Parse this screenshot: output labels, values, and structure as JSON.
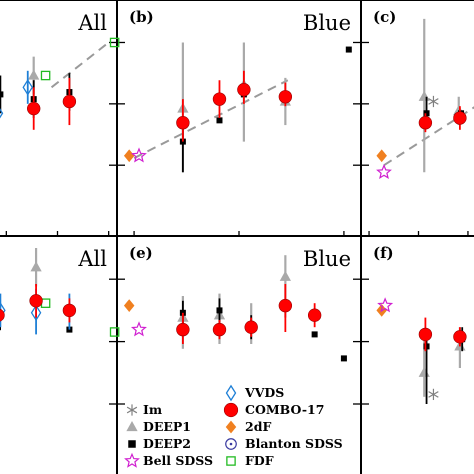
{
  "figure": {
    "colors": {
      "im": "#808080",
      "deep1": "#a9a9a9",
      "deep2": "#000000",
      "combo17": "#ff0000",
      "twodf": "#f08020",
      "vvds": "#1e7fd6",
      "blanton": "#3a3aa0",
      "bell": "#d020d0",
      "fdf": "#22bb22",
      "trend": "#9a9a9a"
    },
    "legend": [
      {
        "label": "Im",
        "marker": "asterisk"
      },
      {
        "label": "DEEP1",
        "marker": "triangle"
      },
      {
        "label": "DEEP2",
        "marker": "square-filled"
      },
      {
        "label": "Bell SDSS",
        "marker": "star"
      },
      {
        "label": "VVDS",
        "marker": "diamond-open"
      },
      {
        "label": "COMBO-17",
        "marker": "circle-filled"
      },
      {
        "label": "2dF",
        "marker": "diamond-filled"
      },
      {
        "label": "Blanton SDSS",
        "marker": "circle-dot"
      },
      {
        "label": "FDF",
        "marker": "square-open"
      }
    ]
  },
  "chart_data": [
    {
      "panel": "a",
      "type": "scatter",
      "title": "All",
      "letter": "",
      "xlim": [
        0,
        1
      ],
      "ylim": [
        0,
        1
      ],
      "trend": [
        [
          0.45,
          0.63
        ],
        [
          0.93,
          0.82
        ]
      ],
      "series": [
        {
          "name": "VVDS",
          "points": [
            {
              "x": 0.0,
              "y": 0.52,
              "lo": 0.44,
              "hi": 0.6
            },
            {
              "x": 0.25,
              "y": 0.63,
              "lo": 0.56,
              "hi": 0.7
            }
          ]
        },
        {
          "name": "DEEP2",
          "points": [
            {
              "x": 0.02,
              "y": 0.6,
              "lo": 0.52,
              "hi": 0.68
            },
            {
              "x": 0.3,
              "y": 0.58,
              "lo": 0.5,
              "hi": 0.66
            },
            {
              "x": 0.6,
              "y": 0.61,
              "lo": 0.53,
              "hi": 0.69
            }
          ]
        },
        {
          "name": "COMBO-17",
          "points": [
            {
              "x": 0.3,
              "y": 0.54,
              "lo": 0.45,
              "hi": 0.63
            },
            {
              "x": 0.6,
              "y": 0.57,
              "lo": 0.47,
              "hi": 0.67
            }
          ]
        },
        {
          "name": "DEEP1",
          "points": [
            {
              "x": 0.3,
              "y": 0.68,
              "lo": 0.6,
              "hi": 0.76
            }
          ]
        },
        {
          "name": "FDF",
          "points": [
            {
              "x": 0.4,
              "y": 0.68
            },
            {
              "x": 0.98,
              "y": 0.82
            }
          ]
        }
      ]
    },
    {
      "panel": "b",
      "type": "scatter",
      "title": "Blue",
      "letter": "(b)",
      "xlim": [
        0,
        1
      ],
      "ylim": [
        0,
        1
      ],
      "trend": [
        [
          0.07,
          0.33
        ],
        [
          0.7,
          0.66
        ]
      ],
      "series": [
        {
          "name": "DEEP1",
          "points": [
            {
              "x": 0.27,
              "y": 0.54,
              "lo": 0.27,
              "hi": 0.82
            },
            {
              "x": 0.52,
              "y": 0.64,
              "lo": 0.4,
              "hi": 0.82
            },
            {
              "x": 0.69,
              "y": 0.57,
              "lo": 0.47,
              "hi": 0.67
            }
          ]
        },
        {
          "name": "DEEP2",
          "points": [
            {
              "x": 0.27,
              "y": 0.4,
              "lo": 0.27,
              "hi": 0.5
            },
            {
              "x": 0.42,
              "y": 0.49
            },
            {
              "x": 0.52,
              "y": 0.6
            },
            {
              "x": 0.95,
              "y": 0.79
            }
          ]
        },
        {
          "name": "COMBO-17",
          "points": [
            {
              "x": 0.27,
              "y": 0.48,
              "lo": 0.4,
              "hi": 0.58
            },
            {
              "x": 0.42,
              "y": 0.58,
              "lo": 0.5,
              "hi": 0.66
            },
            {
              "x": 0.52,
              "y": 0.62,
              "lo": 0.56,
              "hi": 0.7
            },
            {
              "x": 0.69,
              "y": 0.59,
              "lo": 0.55,
              "hi": 0.65
            }
          ]
        },
        {
          "name": "2dF",
          "points": [
            {
              "x": 0.05,
              "y": 0.34
            }
          ]
        },
        {
          "name": "Bell SDSS",
          "points": [
            {
              "x": 0.09,
              "y": 0.34
            }
          ]
        }
      ]
    },
    {
      "panel": "c",
      "type": "scatter",
      "title": "",
      "letter": "(c)",
      "xlim": [
        0,
        1
      ],
      "ylim": [
        0,
        1
      ],
      "trend": [
        [
          0.2,
          0.3
        ],
        [
          1.0,
          0.55
        ]
      ],
      "series": [
        {
          "name": "DEEP1",
          "points": [
            {
              "x": 0.55,
              "y": 0.59,
              "lo": 0.27,
              "hi": 0.92
            },
            {
              "x": 0.85,
              "y": 0.53,
              "lo": 0.47,
              "hi": 0.59
            }
          ]
        },
        {
          "name": "Im",
          "points": [
            {
              "x": 0.63,
              "y": 0.57
            }
          ]
        },
        {
          "name": "DEEP2",
          "points": [
            {
              "x": 0.57,
              "y": 0.52,
              "lo": 0.47,
              "hi": 0.59
            },
            {
              "x": 0.87,
              "y": 0.52
            }
          ]
        },
        {
          "name": "COMBO-17",
          "points": [
            {
              "x": 0.56,
              "y": 0.48,
              "lo": 0.44,
              "hi": 0.52
            },
            {
              "x": 0.86,
              "y": 0.5,
              "lo": 0.45,
              "hi": 0.55
            }
          ]
        },
        {
          "name": "2dF",
          "points": [
            {
              "x": 0.18,
              "y": 0.34
            }
          ]
        },
        {
          "name": "Bell SDSS",
          "points": [
            {
              "x": 0.2,
              "y": 0.27
            }
          ]
        }
      ]
    },
    {
      "panel": "d",
      "type": "scatter",
      "title": "All",
      "letter": "",
      "xlim": [
        0,
        1
      ],
      "ylim": [
        0,
        1
      ],
      "series": [
        {
          "name": "VVDS",
          "points": [
            {
              "x": 0.02,
              "y": 0.69,
              "lo": 0.62,
              "hi": 0.76
            },
            {
              "x": 0.32,
              "y": 0.68,
              "lo": 0.59,
              "hi": 0.78
            },
            {
              "x": 0.6,
              "y": 0.69,
              "lo": 0.61,
              "hi": 0.76
            }
          ]
        },
        {
          "name": "DEEP2",
          "points": [
            {
              "x": 0.0,
              "y": 0.62
            },
            {
              "x": 0.6,
              "y": 0.61
            }
          ]
        },
        {
          "name": "COMBO-17",
          "points": [
            {
              "x": 0.0,
              "y": 0.67,
              "lo": 0.6,
              "hi": 0.74
            },
            {
              "x": 0.32,
              "y": 0.73,
              "lo": 0.66,
              "hi": 0.8
            },
            {
              "x": 0.6,
              "y": 0.69,
              "lo": 0.64,
              "hi": 0.74
            }
          ]
        },
        {
          "name": "DEEP1",
          "points": [
            {
              "x": 0.32,
              "y": 0.87,
              "lo": 0.79,
              "hi": 0.95
            },
            {
              "x": 0.6,
              "y": 0.7
            }
          ]
        },
        {
          "name": "FDF",
          "points": [
            {
              "x": 0.4,
              "y": 0.72
            },
            {
              "x": 0.98,
              "y": 0.6
            }
          ]
        }
      ]
    },
    {
      "panel": "e",
      "type": "scatter",
      "title": "Blue",
      "letter": "(e)",
      "xlim": [
        0,
        1
      ],
      "ylim": [
        0,
        1
      ],
      "series": [
        {
          "name": "DEEP1",
          "points": [
            {
              "x": 0.27,
              "y": 0.66,
              "lo": 0.53,
              "hi": 0.75
            },
            {
              "x": 0.42,
              "y": 0.67,
              "lo": 0.55,
              "hi": 0.76
            },
            {
              "x": 0.55,
              "y": 0.63,
              "lo": 0.55,
              "hi": 0.72
            },
            {
              "x": 0.69,
              "y": 0.83,
              "lo": 0.66,
              "hi": 0.92
            }
          ]
        },
        {
          "name": "DEEP2",
          "points": [
            {
              "x": 0.27,
              "y": 0.68,
              "lo": 0.63,
              "hi": 0.73
            },
            {
              "x": 0.42,
              "y": 0.69,
              "lo": 0.64,
              "hi": 0.74
            },
            {
              "x": 0.55,
              "y": 0.62,
              "lo": 0.57,
              "hi": 0.67
            },
            {
              "x": 0.81,
              "y": 0.59
            },
            {
              "x": 0.93,
              "y": 0.49
            }
          ]
        },
        {
          "name": "COMBO-17",
          "points": [
            {
              "x": 0.27,
              "y": 0.61,
              "lo": 0.55,
              "hi": 0.68
            },
            {
              "x": 0.42,
              "y": 0.61,
              "lo": 0.57,
              "hi": 0.65
            },
            {
              "x": 0.55,
              "y": 0.62,
              "lo": 0.58,
              "hi": 0.66
            },
            {
              "x": 0.69,
              "y": 0.71,
              "lo": 0.6,
              "hi": 0.8
            },
            {
              "x": 0.81,
              "y": 0.67,
              "lo": 0.62,
              "hi": 0.72
            }
          ]
        },
        {
          "name": "2dF",
          "points": [
            {
              "x": 0.05,
              "y": 0.71
            }
          ]
        },
        {
          "name": "Bell SDSS",
          "points": [
            {
              "x": 0.09,
              "y": 0.61
            }
          ]
        }
      ]
    },
    {
      "panel": "f",
      "type": "scatter",
      "title": "",
      "letter": "(f)",
      "xlim": [
        0,
        1
      ],
      "ylim": [
        0,
        1
      ],
      "series": [
        {
          "name": "DEEP1",
          "points": [
            {
              "x": 0.55,
              "y": 0.43,
              "lo": 0.33,
              "hi": 0.57
            },
            {
              "x": 0.86,
              "y": 0.54,
              "lo": 0.45,
              "hi": 0.62
            }
          ]
        },
        {
          "name": "Im",
          "points": [
            {
              "x": 0.63,
              "y": 0.34
            }
          ]
        },
        {
          "name": "DEEP2",
          "points": [
            {
              "x": 0.57,
              "y": 0.54,
              "lo": 0.3,
              "hi": 0.6
            },
            {
              "x": 0.88,
              "y": 0.57,
              "lo": 0.52,
              "hi": 0.62
            }
          ]
        },
        {
          "name": "COMBO-17",
          "points": [
            {
              "x": 0.56,
              "y": 0.59,
              "lo": 0.52,
              "hi": 0.66
            },
            {
              "x": 0.86,
              "y": 0.58,
              "lo": 0.54,
              "hi": 0.62
            }
          ]
        },
        {
          "name": "2dF",
          "points": [
            {
              "x": 0.18,
              "y": 0.69
            }
          ]
        },
        {
          "name": "Bell SDSS",
          "points": [
            {
              "x": 0.21,
              "y": 0.71
            }
          ]
        }
      ]
    }
  ]
}
